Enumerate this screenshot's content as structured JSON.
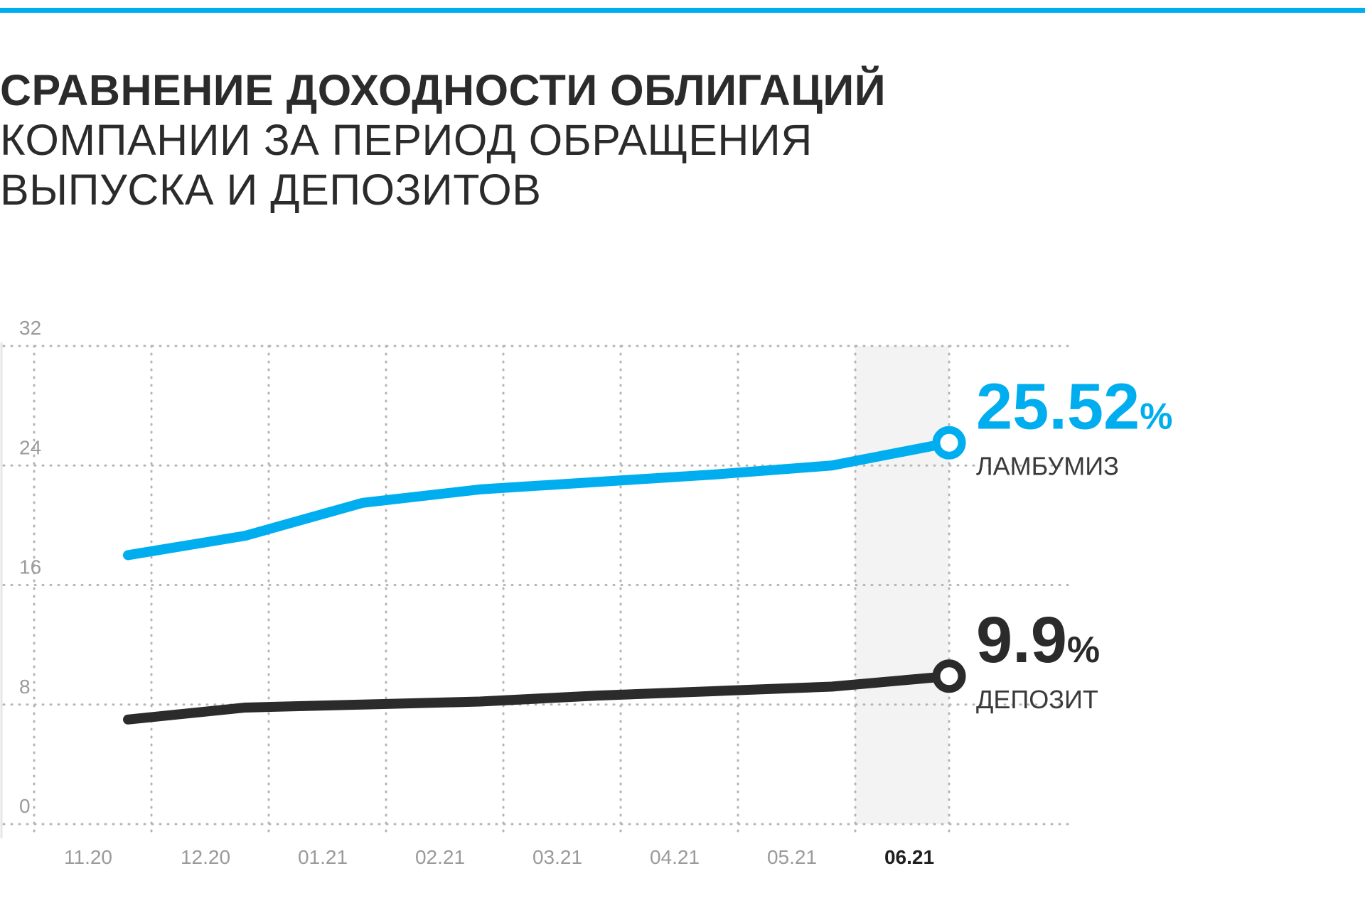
{
  "colors": {
    "accent": "#00aeef",
    "dark": "#2b2b2b",
    "grid": "#b5b5b5",
    "highlight_band": "#f3f3f3"
  },
  "header": {
    "title_bold": "СРАВНЕНИЕ ДОХОДНОСТИ ОБЛИГАЦИЙ",
    "title_line2": "КОМПАНИИ ЗА ПЕРИОД ОБРАЩЕНИЯ",
    "title_line3": "ВЫПУСКА И ДЕПОЗИТОВ"
  },
  "chart_data": {
    "type": "line",
    "title": "СРАВНЕНИЕ ДОХОДНОСТИ ОБЛИГАЦИЙ КОМПАНИИ ЗА ПЕРИОД ОБРАЩЕНИЯ ВЫПУСКА И ДЕПОЗИТОВ",
    "categories": [
      "11.20",
      "12.20",
      "01.21",
      "02.21",
      "03.21",
      "04.21",
      "05.21",
      "06.21"
    ],
    "highlight_category": "06.21",
    "y_ticks": [
      0,
      8,
      16,
      24,
      32
    ],
    "ylim": [
      0,
      32
    ],
    "grid": true,
    "series": [
      {
        "name": "ЛАМБУМИЗ",
        "color": "#00aeef",
        "values": [
          18.0,
          19.3,
          21.5,
          22.4,
          22.9,
          23.4,
          24.0,
          25.52
        ],
        "end_value_number": "25.52",
        "end_value_unit": "%"
      },
      {
        "name": "ДЕПОЗИТ",
        "color": "#2b2b2b",
        "values": [
          7.0,
          7.8,
          8.0,
          8.2,
          8.6,
          8.9,
          9.2,
          9.9
        ],
        "end_value_number": "9.9",
        "end_value_unit": "%"
      }
    ]
  }
}
